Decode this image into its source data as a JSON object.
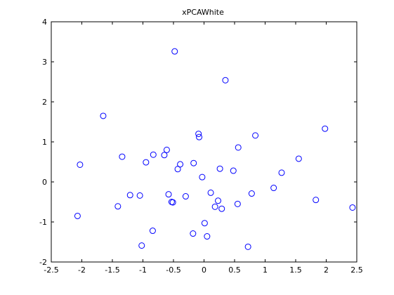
{
  "chart_data": {
    "type": "scatter",
    "title": "xPCAWhite",
    "xlabel": "",
    "ylabel": "",
    "xlim": [
      -2.5,
      2.5
    ],
    "ylim": [
      -2,
      4
    ],
    "xticks": [
      -2.5,
      -2,
      -1.5,
      -1,
      -0.5,
      0,
      0.5,
      1,
      1.5,
      2,
      2.5
    ],
    "yticks": [
      -2,
      -1,
      0,
      1,
      2,
      3,
      4
    ],
    "xtick_labels": [
      "-2.5",
      "-2",
      "-1.5",
      "-1",
      "-0.5",
      "0",
      "0.5",
      "1",
      "1.5",
      "2",
      "2.5"
    ],
    "ytick_labels": [
      "-2",
      "-1",
      "0",
      "1",
      "2",
      "3",
      "4"
    ],
    "grid": false,
    "marker": "circle-open",
    "marker_color": "#0000ff",
    "x": [
      -0.48,
      0.35,
      -1.65,
      -0.09,
      -0.08,
      0.84,
      1.98,
      -2.03,
      -1.34,
      -0.83,
      -0.61,
      -0.65,
      -0.95,
      -0.17,
      -0.39,
      -0.43,
      0.26,
      0.48,
      0.56,
      1.27,
      1.55,
      -0.03,
      -1.21,
      -1.05,
      -0.58,
      -0.3,
      0.11,
      0.23,
      0.18,
      0.29,
      0.55,
      0.78,
      1.14,
      1.83,
      2.43,
      -2.07,
      -1.41,
      -0.53,
      -0.51,
      -0.84,
      -0.18,
      0.01,
      0.05,
      -1.02,
      0.72
    ],
    "y": [
      3.26,
      2.54,
      1.65,
      1.2,
      1.12,
      1.16,
      1.33,
      0.43,
      0.63,
      0.68,
      0.8,
      0.67,
      0.49,
      0.47,
      0.44,
      0.32,
      0.33,
      0.28,
      0.86,
      0.23,
      0.58,
      0.12,
      -0.33,
      -0.34,
      -0.31,
      -0.36,
      -0.27,
      -0.47,
      -0.62,
      -0.67,
      -0.55,
      -0.29,
      -0.15,
      -0.45,
      -0.64,
      -0.85,
      -0.61,
      -0.5,
      -0.51,
      -1.22,
      -1.29,
      -1.03,
      -1.36,
      -1.59,
      -1.62
    ]
  }
}
